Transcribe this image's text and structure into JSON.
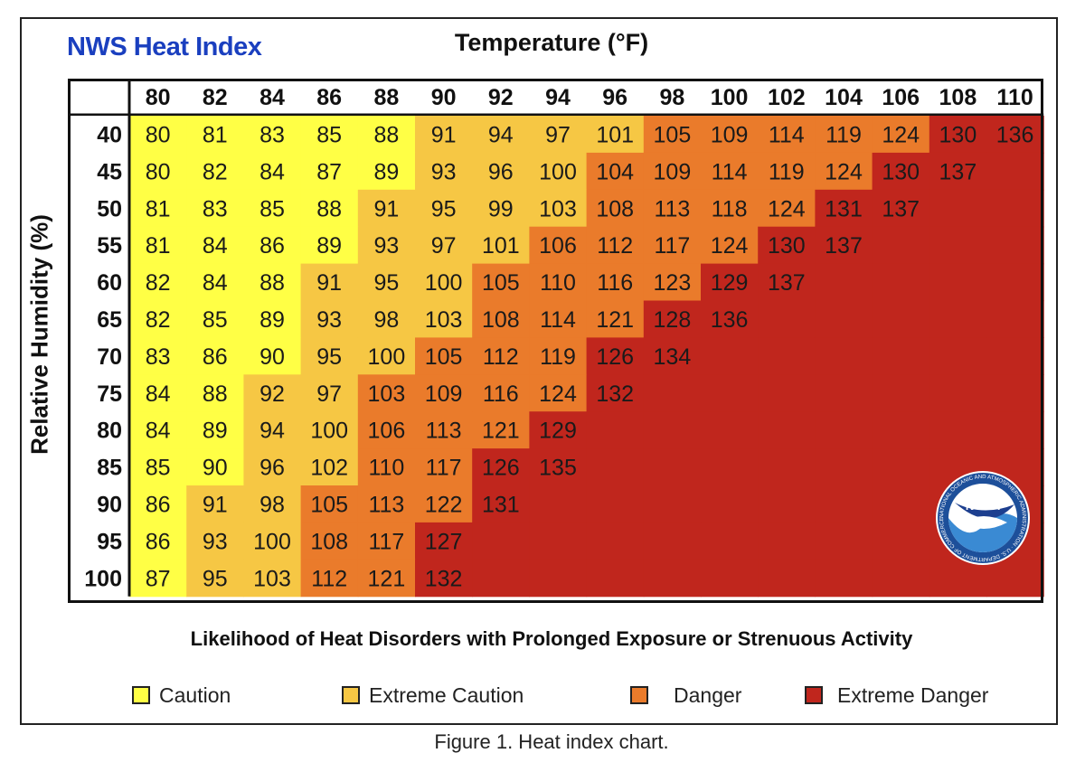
{
  "chart_data": {
    "type": "heatmap",
    "title": "NWS Heat Index",
    "xlabel": "Temperature (°F)",
    "ylabel": "Relative Humidity (%)",
    "x": [
      "80",
      "82",
      "84",
      "86",
      "88",
      "90",
      "92",
      "94",
      "96",
      "98",
      "100",
      "102",
      "104",
      "106",
      "108",
      "110"
    ],
    "y": [
      "40",
      "45",
      "50",
      "55",
      "60",
      "65",
      "70",
      "75",
      "80",
      "85",
      "90",
      "95",
      "100"
    ],
    "values": [
      [
        80,
        81,
        83,
        85,
        88,
        91,
        94,
        97,
        101,
        105,
        109,
        114,
        119,
        124,
        130,
        136
      ],
      [
        80,
        82,
        84,
        87,
        89,
        93,
        96,
        100,
        104,
        109,
        114,
        119,
        124,
        130,
        137,
        null
      ],
      [
        81,
        83,
        85,
        88,
        91,
        95,
        99,
        103,
        108,
        113,
        118,
        124,
        131,
        137,
        null,
        null
      ],
      [
        81,
        84,
        86,
        89,
        93,
        97,
        101,
        106,
        112,
        117,
        124,
        130,
        137,
        null,
        null,
        null
      ],
      [
        82,
        84,
        88,
        91,
        95,
        100,
        105,
        110,
        116,
        123,
        129,
        137,
        null,
        null,
        null,
        null
      ],
      [
        82,
        85,
        89,
        93,
        98,
        103,
        108,
        114,
        121,
        128,
        136,
        null,
        null,
        null,
        null,
        null
      ],
      [
        83,
        86,
        90,
        95,
        100,
        105,
        112,
        119,
        126,
        134,
        null,
        null,
        null,
        null,
        null,
        null
      ],
      [
        84,
        88,
        92,
        97,
        103,
        109,
        116,
        124,
        132,
        null,
        null,
        null,
        null,
        null,
        null,
        null
      ],
      [
        84,
        89,
        94,
        100,
        106,
        113,
        121,
        129,
        null,
        null,
        null,
        null,
        null,
        null,
        null,
        null
      ],
      [
        85,
        90,
        96,
        102,
        110,
        117,
        126,
        135,
        null,
        null,
        null,
        null,
        null,
        null,
        null,
        null
      ],
      [
        86,
        91,
        98,
        105,
        113,
        122,
        131,
        null,
        null,
        null,
        null,
        null,
        null,
        null,
        null,
        null
      ],
      [
        86,
        93,
        100,
        108,
        117,
        127,
        null,
        null,
        null,
        null,
        null,
        null,
        null,
        null,
        null,
        null
      ],
      [
        87,
        95,
        103,
        112,
        121,
        132,
        null,
        null,
        null,
        null,
        null,
        null,
        null,
        null,
        null,
        null
      ]
    ],
    "categories": [
      [
        "C",
        "C",
        "C",
        "C",
        "C",
        "EC",
        "EC",
        "EC",
        "EC",
        "D",
        "D",
        "D",
        "D",
        "D",
        "ED",
        "ED"
      ],
      [
        "C",
        "C",
        "C",
        "C",
        "C",
        "EC",
        "EC",
        "EC",
        "D",
        "D",
        "D",
        "D",
        "D",
        "ED",
        "ED",
        "ED"
      ],
      [
        "C",
        "C",
        "C",
        "C",
        "EC",
        "EC",
        "EC",
        "EC",
        "D",
        "D",
        "D",
        "D",
        "ED",
        "ED",
        "ED",
        "ED"
      ],
      [
        "C",
        "C",
        "C",
        "C",
        "EC",
        "EC",
        "EC",
        "D",
        "D",
        "D",
        "D",
        "ED",
        "ED",
        "ED",
        "ED",
        "ED"
      ],
      [
        "C",
        "C",
        "C",
        "EC",
        "EC",
        "EC",
        "D",
        "D",
        "D",
        "D",
        "ED",
        "ED",
        "ED",
        "ED",
        "ED",
        "ED"
      ],
      [
        "C",
        "C",
        "C",
        "EC",
        "EC",
        "EC",
        "D",
        "D",
        "D",
        "ED",
        "ED",
        "ED",
        "ED",
        "ED",
        "ED",
        "ED"
      ],
      [
        "C",
        "C",
        "C",
        "EC",
        "EC",
        "D",
        "D",
        "D",
        "ED",
        "ED",
        "ED",
        "ED",
        "ED",
        "ED",
        "ED",
        "ED"
      ],
      [
        "C",
        "C",
        "EC",
        "EC",
        "D",
        "D",
        "D",
        "D",
        "ED",
        "ED",
        "ED",
        "ED",
        "ED",
        "ED",
        "ED",
        "ED"
      ],
      [
        "C",
        "C",
        "EC",
        "EC",
        "D",
        "D",
        "D",
        "ED",
        "ED",
        "ED",
        "ED",
        "ED",
        "ED",
        "ED",
        "ED",
        "ED"
      ],
      [
        "C",
        "C",
        "EC",
        "EC",
        "D",
        "D",
        "ED",
        "ED",
        "ED",
        "ED",
        "ED",
        "ED",
        "ED",
        "ED",
        "ED",
        "ED"
      ],
      [
        "C",
        "EC",
        "EC",
        "D",
        "D",
        "D",
        "ED",
        "ED",
        "ED",
        "ED",
        "ED",
        "ED",
        "ED",
        "ED",
        "ED",
        "ED"
      ],
      [
        "C",
        "EC",
        "EC",
        "D",
        "D",
        "ED",
        "ED",
        "ED",
        "ED",
        "ED",
        "ED",
        "ED",
        "ED",
        "ED",
        "ED",
        "ED"
      ],
      [
        "C",
        "EC",
        "EC",
        "D",
        "D",
        "ED",
        "ED",
        "ED",
        "ED",
        "ED",
        "ED",
        "ED",
        "ED",
        "ED",
        "ED",
        "ED"
      ]
    ],
    "legend": [
      {
        "key": "C",
        "label": "Caution",
        "color": "#ffff45"
      },
      {
        "key": "EC",
        "label": "Extreme Caution",
        "color": "#f6c744"
      },
      {
        "key": "D",
        "label": "Danger",
        "color": "#ea7b2b"
      },
      {
        "key": "ED",
        "label": "Extreme Danger",
        "color": "#c0261d"
      }
    ],
    "legend_placement": "bottom",
    "footer_title": "Likelihood of Heat Disorders with Prolonged Exposure or Strenuous Activity",
    "grid": false
  },
  "caption": "Figure 1. Heat index chart.",
  "logo": {
    "text": "NOAA",
    "ring_text": "NATIONAL OCEANIC AND ATMOSPHERIC ADMINISTRATION · U.S. DEPARTMENT OF COMMERCE"
  }
}
